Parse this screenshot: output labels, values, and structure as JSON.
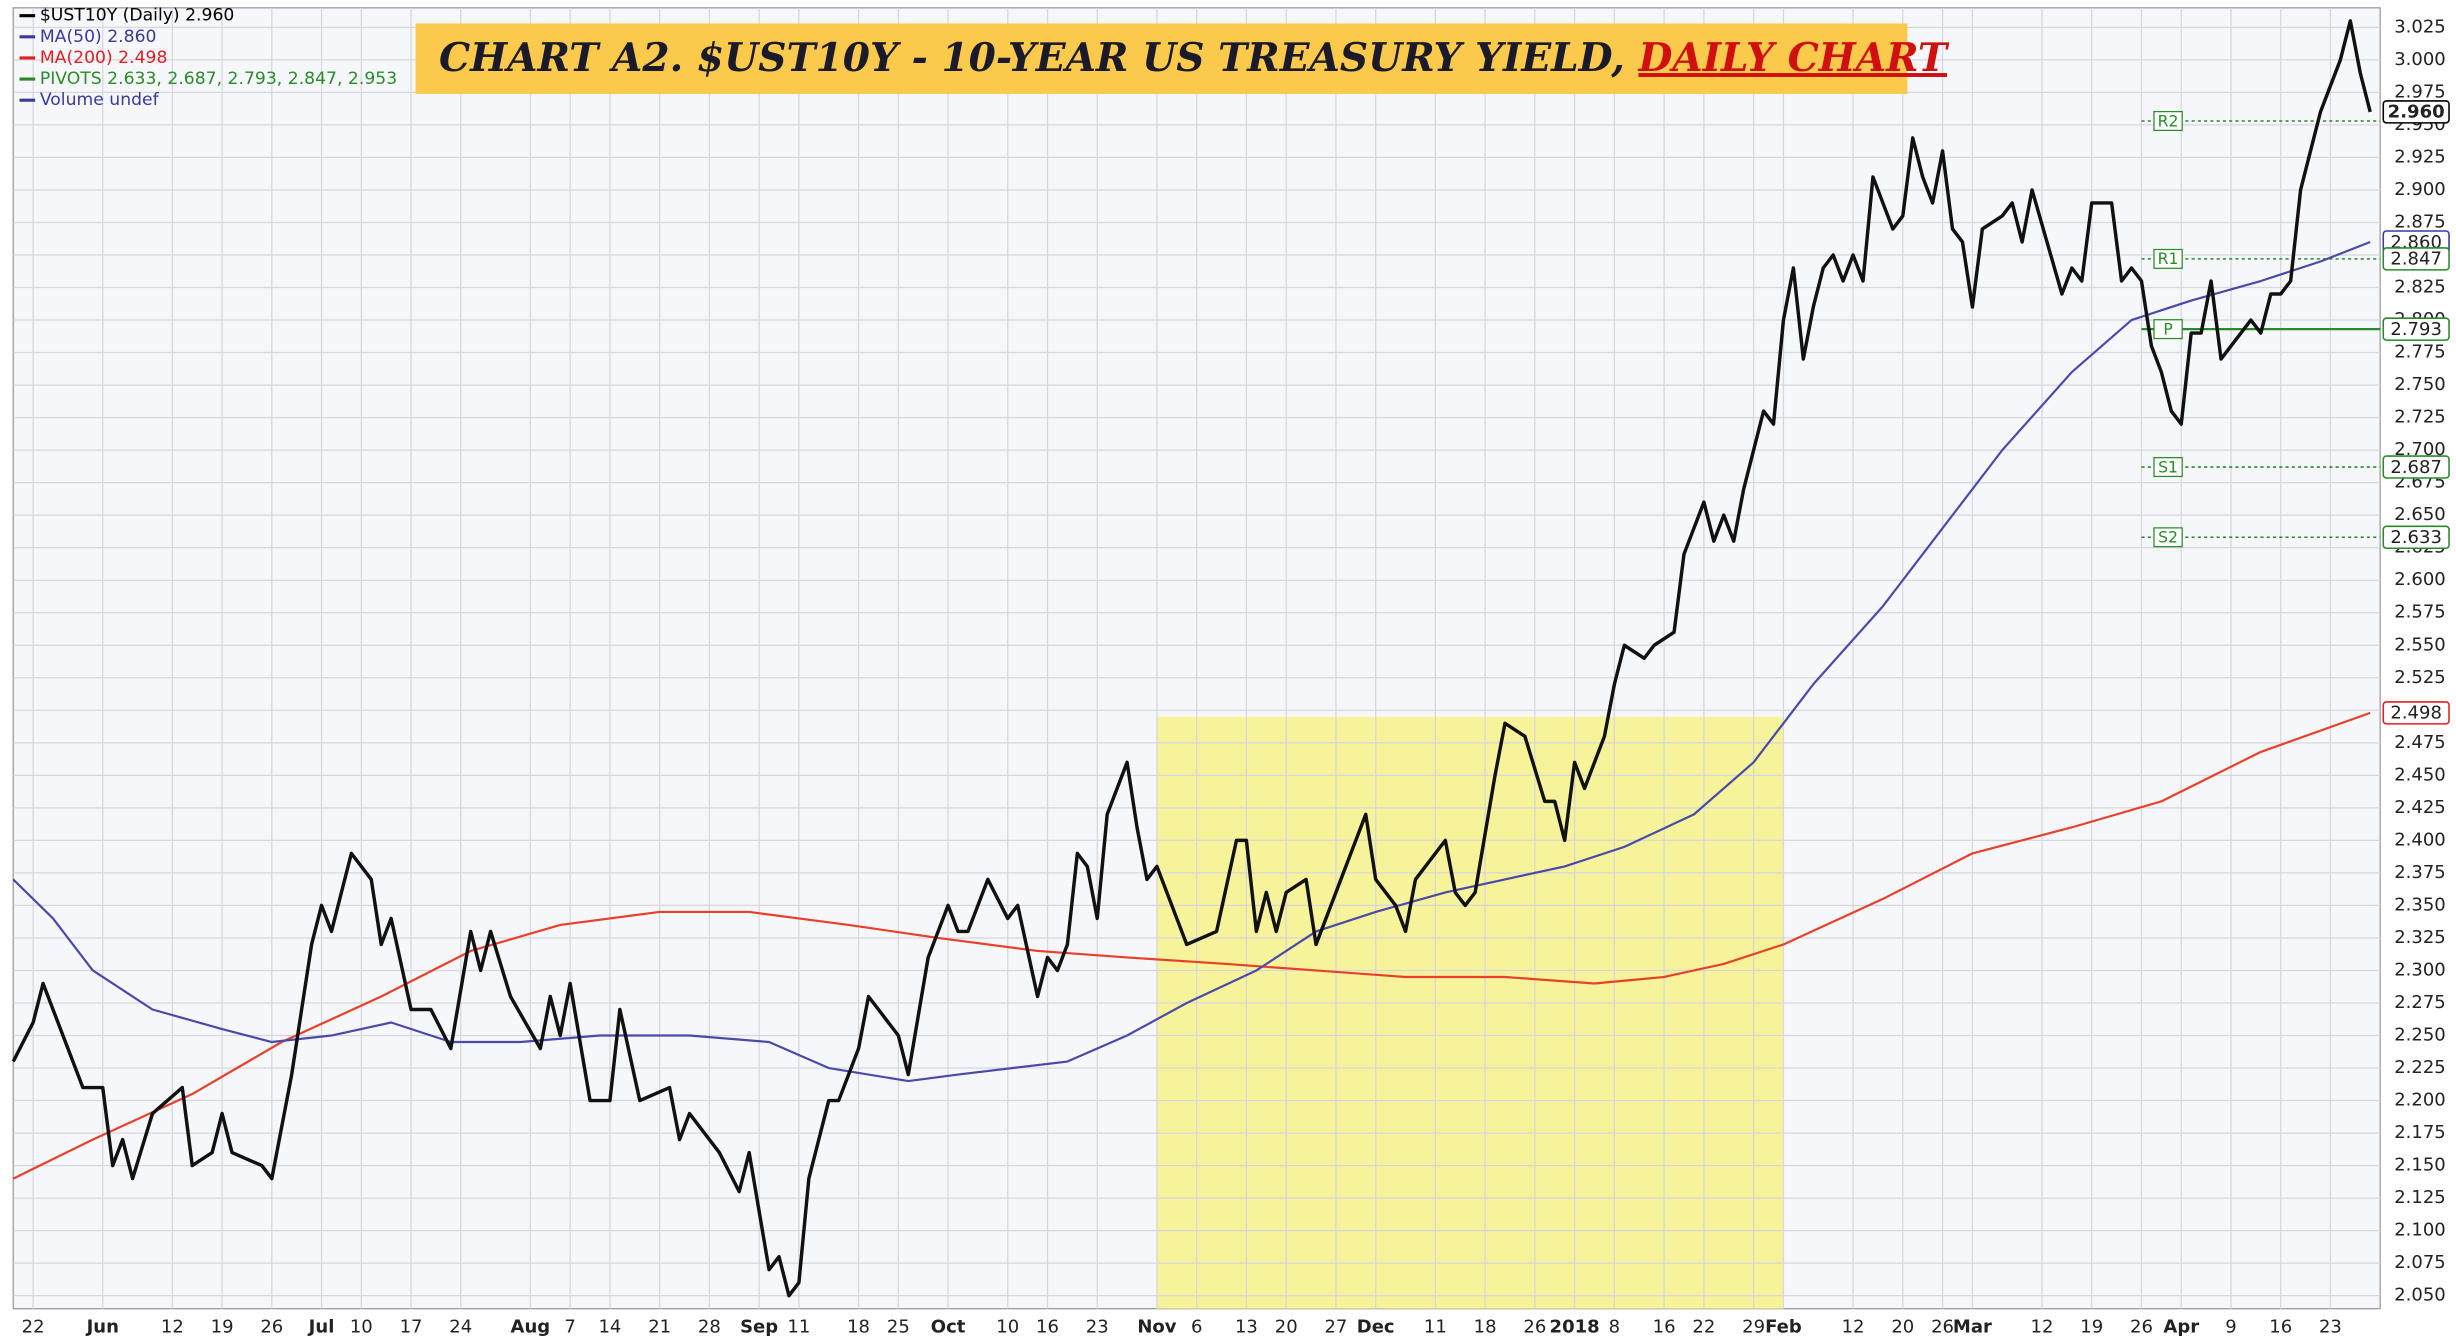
{
  "chart_data": {
    "type": "line",
    "title": "CHART A2. $UST10Y - 10-YEAR US TREASURY YIELD, ",
    "title_highlight": "DAILY CHART",
    "legend": [
      "$UST10Y (Daily) 2.960",
      "MA(50) 2.860",
      "MA(200) 2.498",
      "PIVOTS 2.633, 2.687, 2.793, 2.847, 2.953",
      "Volume undef"
    ],
    "legend_colors": [
      "#000000",
      "#3a3a9c",
      "#e02020",
      "#2a8a2a",
      "#3a3a9c"
    ],
    "xlim": [
      0,
      238
    ],
    "ylim": [
      2.04,
      3.04
    ],
    "grid": true,
    "xticks": [
      {
        "value": 2,
        "label": "22"
      },
      {
        "value": 9,
        "label": "Jun"
      },
      {
        "value": 16,
        "label": "12"
      },
      {
        "value": 21,
        "label": "19"
      },
      {
        "value": 26,
        "label": "26"
      },
      {
        "value": 31,
        "label": "Jul"
      },
      {
        "value": 35,
        "label": "10"
      },
      {
        "value": 40,
        "label": "17"
      },
      {
        "value": 45,
        "label": "24"
      },
      {
        "value": 52,
        "label": "Aug"
      },
      {
        "value": 56,
        "label": "7"
      },
      {
        "value": 60,
        "label": "14"
      },
      {
        "value": 65,
        "label": "21"
      },
      {
        "value": 70,
        "label": "28"
      },
      {
        "value": 75,
        "label": "Sep"
      },
      {
        "value": 79,
        "label": "11"
      },
      {
        "value": 85,
        "label": "18"
      },
      {
        "value": 89,
        "label": "25"
      },
      {
        "value": 94,
        "label": "Oct"
      },
      {
        "value": 100,
        "label": "10"
      },
      {
        "value": 104,
        "label": "16"
      },
      {
        "value": 109,
        "label": "23"
      },
      {
        "value": 115,
        "label": "Nov"
      },
      {
        "value": 119,
        "label": "6"
      },
      {
        "value": 124,
        "label": "13"
      },
      {
        "value": 128,
        "label": "20"
      },
      {
        "value": 133,
        "label": "27"
      },
      {
        "value": 137,
        "label": "Dec"
      },
      {
        "value": 143,
        "label": "11"
      },
      {
        "value": 148,
        "label": "18"
      },
      {
        "value": 153,
        "label": "26"
      },
      {
        "value": 157,
        "label": "2018"
      },
      {
        "value": 161,
        "label": "8"
      },
      {
        "value": 166,
        "label": "16"
      },
      {
        "value": 170,
        "label": "22"
      },
      {
        "value": 175,
        "label": "29"
      },
      {
        "value": 178,
        "label": "Feb"
      },
      {
        "value": 185,
        "label": "12"
      },
      {
        "value": 190,
        "label": "20"
      },
      {
        "value": 194,
        "label": "26"
      },
      {
        "value": 197,
        "label": "Mar"
      },
      {
        "value": 204,
        "label": "12"
      },
      {
        "value": 209,
        "label": "19"
      },
      {
        "value": 214,
        "label": "26"
      },
      {
        "value": 218,
        "label": "Apr"
      },
      {
        "value": 223,
        "label": "9"
      },
      {
        "value": 228,
        "label": "16"
      },
      {
        "value": 233,
        "label": "23"
      }
    ],
    "yticks": [
      {
        "value": 2.05,
        "label": "2.050"
      },
      {
        "value": 2.075,
        "label": "2.075"
      },
      {
        "value": 2.1,
        "label": "2.100"
      },
      {
        "value": 2.125,
        "label": "2.125"
      },
      {
        "value": 2.15,
        "label": "2.150"
      },
      {
        "value": 2.175,
        "label": "2.175"
      },
      {
        "value": 2.2,
        "label": "2.200"
      },
      {
        "value": 2.225,
        "label": "2.225"
      },
      {
        "value": 2.25,
        "label": "2.250"
      },
      {
        "value": 2.275,
        "label": "2.275"
      },
      {
        "value": 2.3,
        "label": "2.300"
      },
      {
        "value": 2.325,
        "label": "2.325"
      },
      {
        "value": 2.35,
        "label": "2.350"
      },
      {
        "value": 2.375,
        "label": "2.375"
      },
      {
        "value": 2.4,
        "label": "2.400"
      },
      {
        "value": 2.425,
        "label": "2.425"
      },
      {
        "value": 2.45,
        "label": "2.450"
      },
      {
        "value": 2.475,
        "label": "2.475"
      },
      {
        "value": 2.5,
        "label": "2.500"
      },
      {
        "value": 2.525,
        "label": "2.525"
      },
      {
        "value": 2.55,
        "label": "2.550"
      },
      {
        "value": 2.575,
        "label": "2.575"
      },
      {
        "value": 2.6,
        "label": "2.600"
      },
      {
        "value": 2.625,
        "label": "2.625"
      },
      {
        "value": 2.65,
        "label": "2.650"
      },
      {
        "value": 2.675,
        "label": "2.675"
      },
      {
        "value": 2.7,
        "label": "2.700"
      },
      {
        "value": 2.725,
        "label": "2.725"
      },
      {
        "value": 2.75,
        "label": "2.750"
      },
      {
        "value": 2.775,
        "label": "2.775"
      },
      {
        "value": 2.8,
        "label": "2.800"
      },
      {
        "value": 2.825,
        "label": "2.825"
      },
      {
        "value": 2.85,
        "label": "2.850"
      },
      {
        "value": 2.875,
        "label": "2.875"
      },
      {
        "value": 2.9,
        "label": "2.900"
      },
      {
        "value": 2.925,
        "label": "2.925"
      },
      {
        "value": 2.95,
        "label": "2.950"
      },
      {
        "value": 2.975,
        "label": "2.975"
      },
      {
        "value": 3.0,
        "label": "3.000"
      },
      {
        "value": 3.025,
        "label": "3.025"
      }
    ],
    "highlight": {
      "x": [
        115,
        178
      ],
      "y": [
        2.04,
        2.495
      ],
      "color": "#f6f28a"
    },
    "series": [
      {
        "name": "MA(200)",
        "color": "#e8402a",
        "x": [
          0,
          8,
          18,
          27,
          37,
          46,
          55,
          65,
          74,
          84,
          93,
          103,
          112,
          122,
          131,
          140,
          150,
          159,
          166,
          172,
          178,
          188,
          197,
          207,
          216,
          226,
          237
        ],
        "values": [
          2.14,
          2.17,
          2.205,
          2.245,
          2.28,
          2.315,
          2.335,
          2.345,
          2.345,
          2.335,
          2.325,
          2.315,
          2.31,
          2.305,
          2.3,
          2.295,
          2.295,
          2.29,
          2.295,
          2.305,
          2.32,
          2.355,
          2.39,
          2.41,
          2.43,
          2.468,
          2.498
        ]
      },
      {
        "name": "MA(50)",
        "color": "#4a4aa8",
        "x": [
          0,
          4,
          8,
          14,
          21,
          26,
          32,
          38,
          44,
          51,
          59,
          68,
          76,
          82,
          90,
          95,
          106,
          112,
          118,
          125,
          131,
          137,
          144,
          150,
          156,
          162,
          169,
          175,
          181,
          188,
          194,
          200,
          207,
          213,
          219,
          226,
          232,
          237
        ],
        "values": [
          2.37,
          2.34,
          2.3,
          2.27,
          2.255,
          2.245,
          2.25,
          2.26,
          2.245,
          2.245,
          2.25,
          2.25,
          2.245,
          2.225,
          2.215,
          2.22,
          2.23,
          2.25,
          2.275,
          2.3,
          2.33,
          2.345,
          2.36,
          2.37,
          2.38,
          2.395,
          2.42,
          2.46,
          2.52,
          2.58,
          2.64,
          2.7,
          2.76,
          2.8,
          2.815,
          2.83,
          2.845,
          2.86
        ]
      },
      {
        "name": "$UST10Y",
        "color": "#111111",
        "x": [
          0,
          2,
          3,
          5,
          7,
          9,
          10,
          11,
          12,
          14,
          17,
          18,
          20,
          21,
          22,
          25,
          26,
          28,
          30,
          31,
          32,
          34,
          36,
          37,
          38,
          40,
          42,
          44,
          46,
          47,
          48,
          50,
          53,
          54,
          55,
          56,
          58,
          60,
          61,
          63,
          66,
          67,
          68,
          71,
          73,
          74,
          76,
          77,
          78,
          79,
          80,
          82,
          83,
          85,
          86,
          89,
          90,
          92,
          94,
          95,
          96,
          98,
          100,
          101,
          103,
          104,
          105,
          106,
          107,
          108,
          109,
          110,
          112,
          113,
          114,
          115,
          117,
          118,
          121,
          123,
          124,
          125,
          126,
          127,
          128,
          130,
          131,
          134,
          136,
          137,
          139,
          140,
          141,
          144,
          145,
          146,
          147,
          149,
          150,
          152,
          154,
          155,
          156,
          157,
          158,
          160,
          161,
          162,
          164,
          165,
          167,
          168,
          170,
          171,
          172,
          173,
          174,
          176,
          177,
          178,
          179,
          180,
          181,
          182,
          183,
          184,
          185,
          186,
          187,
          189,
          190,
          191,
          192,
          193,
          194,
          195,
          196,
          197,
          198,
          200,
          201,
          202,
          203,
          206,
          207,
          208,
          209,
          211,
          212,
          213,
          214,
          215,
          216,
          217,
          218,
          219,
          220,
          221,
          222,
          225,
          226,
          227,
          228,
          229,
          230,
          232,
          234,
          235,
          236,
          237
        ],
        "values": [
          2.23,
          2.26,
          2.29,
          2.25,
          2.21,
          2.21,
          2.15,
          2.17,
          2.14,
          2.19,
          2.21,
          2.15,
          2.16,
          2.19,
          2.16,
          2.15,
          2.14,
          2.22,
          2.32,
          2.35,
          2.33,
          2.39,
          2.37,
          2.32,
          2.34,
          2.27,
          2.27,
          2.24,
          2.33,
          2.3,
          2.33,
          2.28,
          2.24,
          2.28,
          2.25,
          2.29,
          2.2,
          2.2,
          2.27,
          2.2,
          2.21,
          2.17,
          2.19,
          2.16,
          2.13,
          2.16,
          2.07,
          2.08,
          2.05,
          2.06,
          2.14,
          2.2,
          2.2,
          2.24,
          2.28,
          2.25,
          2.22,
          2.31,
          2.35,
          2.33,
          2.33,
          2.37,
          2.34,
          2.35,
          2.28,
          2.31,
          2.3,
          2.32,
          2.39,
          2.38,
          2.34,
          2.42,
          2.46,
          2.41,
          2.37,
          2.38,
          2.34,
          2.32,
          2.33,
          2.4,
          2.4,
          2.33,
          2.36,
          2.33,
          2.36,
          2.37,
          2.32,
          2.38,
          2.42,
          2.37,
          2.35,
          2.33,
          2.37,
          2.4,
          2.36,
          2.35,
          2.36,
          2.45,
          2.49,
          2.48,
          2.43,
          2.43,
          2.4,
          2.46,
          2.44,
          2.48,
          2.52,
          2.55,
          2.54,
          2.55,
          2.56,
          2.62,
          2.66,
          2.63,
          2.65,
          2.63,
          2.67,
          2.73,
          2.72,
          2.8,
          2.84,
          2.77,
          2.81,
          2.84,
          2.85,
          2.83,
          2.85,
          2.83,
          2.91,
          2.87,
          2.88,
          2.94,
          2.91,
          2.89,
          2.93,
          2.87,
          2.86,
          2.81,
          2.87,
          2.88,
          2.89,
          2.86,
          2.9,
          2.82,
          2.84,
          2.83,
          2.89,
          2.89,
          2.83,
          2.84,
          2.83,
          2.78,
          2.76,
          2.73,
          2.72,
          2.79,
          2.79,
          2.83,
          2.77,
          2.8,
          2.79,
          2.82,
          2.82,
          2.83,
          2.9,
          2.96,
          3.0,
          3.03,
          2.99,
          2.96
        ]
      }
    ],
    "pivots": {
      "start": 214,
      "end": 238,
      "color": "#2a8a2a",
      "levels": [
        {
          "name": "R2",
          "value": 2.953
        },
        {
          "name": "R1",
          "value": 2.847
        },
        {
          "name": "P",
          "value": 2.793
        },
        {
          "name": "S1",
          "value": 2.687
        },
        {
          "name": "S2",
          "value": 2.633
        }
      ]
    },
    "tags": [
      {
        "value": 2.96,
        "label": "2.960",
        "color": "#000000"
      },
      {
        "value": 2.86,
        "label": "2.860",
        "color": "#3a3a9c"
      },
      {
        "value": 2.847,
        "label": "2.847",
        "color": "#2a8a2a"
      },
      {
        "value": 2.793,
        "label": "2.793",
        "color": "#2a8a2a"
      },
      {
        "value": 2.687,
        "label": "2.687",
        "color": "#2a8a2a"
      },
      {
        "value": 2.633,
        "label": "2.633",
        "color": "#2a8a2a"
      },
      {
        "value": 2.498,
        "label": "2.498",
        "color": "#e02020"
      }
    ]
  }
}
